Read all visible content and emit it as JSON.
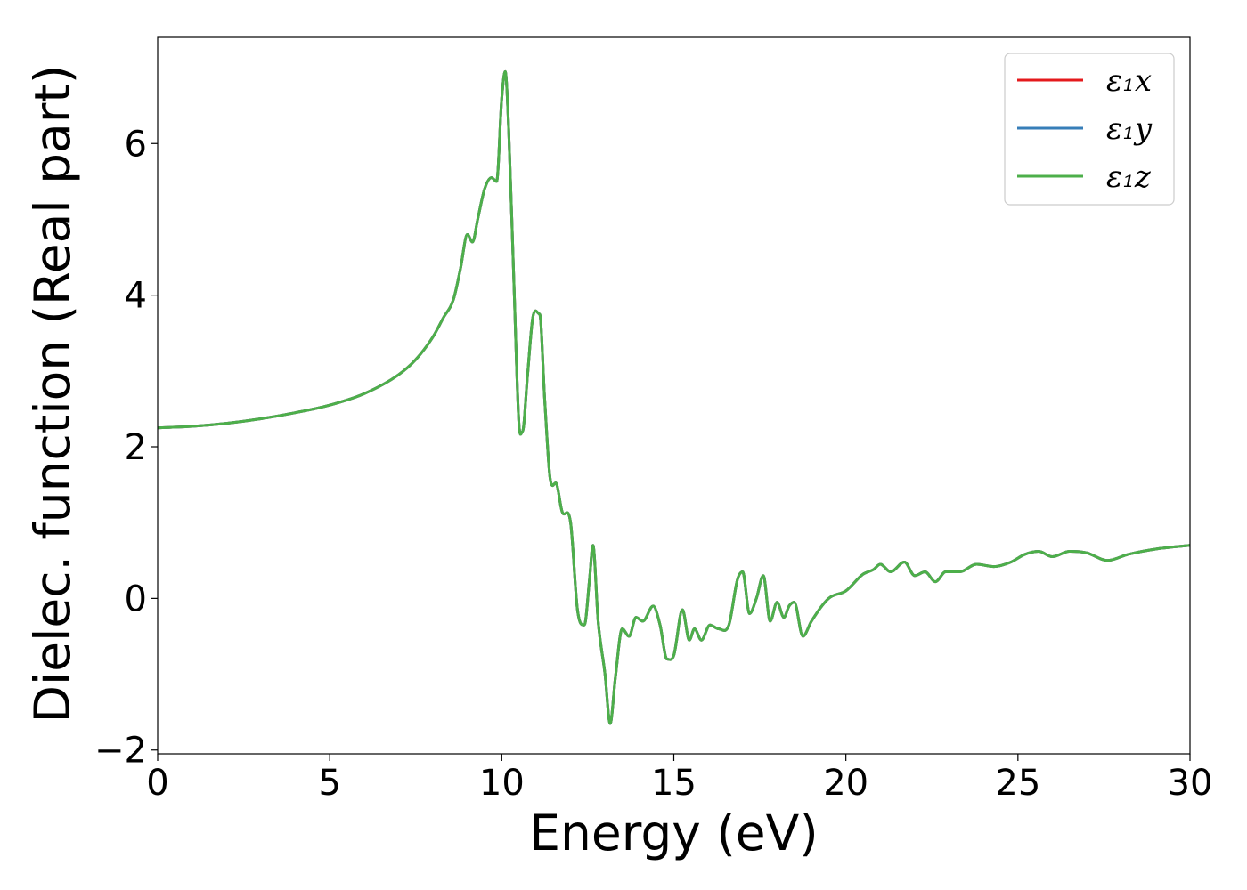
{
  "chart_data": {
    "type": "line",
    "title": "",
    "xlabel": "Energy (eV)",
    "ylabel": "Dielec. function (Real part)",
    "xlim": [
      0,
      30
    ],
    "ylim": [
      -2.05,
      7.4
    ],
    "xticks": [
      0,
      5,
      10,
      15,
      20,
      25,
      30
    ],
    "xtick_labels": [
      "0",
      "5",
      "10",
      "15",
      "20",
      "25",
      "30"
    ],
    "yticks": [
      -2,
      0,
      2,
      4,
      6
    ],
    "ytick_labels": [
      "−2",
      "0",
      "2",
      "4",
      "6"
    ],
    "grid": false,
    "legend_position": "top-right",
    "x": [
      0,
      1,
      2,
      3,
      4,
      5,
      6,
      7,
      7.5,
      8,
      8.3,
      8.6,
      8.8,
      9.0,
      9.15,
      9.3,
      9.5,
      9.7,
      9.85,
      10.0,
      10.1,
      10.2,
      10.35,
      10.5,
      10.6,
      10.75,
      10.9,
      11.1,
      11.25,
      11.4,
      11.6,
      11.75,
      12.0,
      12.2,
      12.4,
      12.55,
      12.65,
      12.8,
      13.0,
      13.15,
      13.3,
      13.5,
      13.7,
      13.9,
      14.1,
      14.4,
      14.6,
      14.8,
      15.0,
      15.25,
      15.45,
      15.6,
      15.8,
      16.05,
      16.3,
      16.6,
      16.85,
      17.0,
      17.2,
      17.4,
      17.6,
      17.8,
      18.0,
      18.2,
      18.35,
      18.5,
      18.75,
      19.0,
      19.5,
      20.0,
      20.5,
      20.8,
      21.0,
      21.3,
      21.7,
      22.0,
      22.3,
      22.6,
      22.9,
      23.3,
      23.8,
      24.3,
      24.8,
      25.2,
      25.6,
      26.0,
      26.5,
      27.0,
      27.6,
      28.2,
      29.0,
      30.0
    ],
    "series": [
      {
        "name": "ε₁x",
        "color": "#e41a1c",
        "values": [
          2.25,
          2.27,
          2.31,
          2.37,
          2.45,
          2.55,
          2.7,
          2.95,
          3.15,
          3.45,
          3.7,
          3.95,
          4.35,
          4.8,
          4.7,
          5.0,
          5.4,
          5.55,
          5.5,
          6.6,
          6.95,
          6.2,
          4.2,
          2.3,
          2.2,
          2.95,
          3.7,
          3.75,
          2.6,
          1.6,
          1.5,
          1.15,
          1.0,
          -0.15,
          -0.35,
          0.25,
          0.7,
          -0.3,
          -1.0,
          -1.65,
          -1.05,
          -0.4,
          -0.5,
          -0.25,
          -0.3,
          -0.1,
          -0.35,
          -0.8,
          -0.75,
          -0.15,
          -0.55,
          -0.4,
          -0.55,
          -0.35,
          -0.4,
          -0.35,
          0.25,
          0.35,
          -0.2,
          0.0,
          0.3,
          -0.3,
          -0.05,
          -0.25,
          -0.1,
          -0.05,
          -0.5,
          -0.3,
          0.0,
          0.1,
          0.32,
          0.38,
          0.45,
          0.35,
          0.48,
          0.3,
          0.35,
          0.22,
          0.35,
          0.35,
          0.45,
          0.42,
          0.48,
          0.58,
          0.62,
          0.55,
          0.62,
          0.6,
          0.5,
          0.58,
          0.65,
          0.7
        ]
      },
      {
        "name": "ε₁y",
        "color": "#377eb8",
        "values": [
          2.25,
          2.27,
          2.31,
          2.37,
          2.45,
          2.55,
          2.7,
          2.95,
          3.15,
          3.45,
          3.7,
          3.95,
          4.35,
          4.8,
          4.7,
          5.0,
          5.4,
          5.55,
          5.5,
          6.6,
          6.95,
          6.2,
          4.2,
          2.3,
          2.2,
          2.95,
          3.7,
          3.75,
          2.6,
          1.6,
          1.5,
          1.15,
          1.0,
          -0.15,
          -0.35,
          0.25,
          0.7,
          -0.3,
          -1.0,
          -1.65,
          -1.05,
          -0.4,
          -0.5,
          -0.25,
          -0.3,
          -0.1,
          -0.35,
          -0.8,
          -0.75,
          -0.15,
          -0.55,
          -0.4,
          -0.55,
          -0.35,
          -0.4,
          -0.35,
          0.25,
          0.35,
          -0.2,
          0.0,
          0.3,
          -0.3,
          -0.05,
          -0.25,
          -0.1,
          -0.05,
          -0.5,
          -0.3,
          0.0,
          0.1,
          0.32,
          0.38,
          0.45,
          0.35,
          0.48,
          0.3,
          0.35,
          0.22,
          0.35,
          0.35,
          0.45,
          0.42,
          0.48,
          0.58,
          0.62,
          0.55,
          0.62,
          0.6,
          0.5,
          0.58,
          0.65,
          0.7
        ]
      },
      {
        "name": "ε₁z",
        "color": "#4daf4a",
        "values": [
          2.25,
          2.27,
          2.31,
          2.37,
          2.45,
          2.55,
          2.7,
          2.95,
          3.15,
          3.45,
          3.7,
          3.95,
          4.35,
          4.8,
          4.7,
          5.0,
          5.4,
          5.55,
          5.5,
          6.6,
          6.95,
          6.2,
          4.2,
          2.3,
          2.2,
          2.95,
          3.7,
          3.75,
          2.6,
          1.6,
          1.5,
          1.15,
          1.0,
          -0.15,
          -0.35,
          0.25,
          0.7,
          -0.3,
          -1.0,
          -1.65,
          -1.05,
          -0.4,
          -0.5,
          -0.25,
          -0.3,
          -0.1,
          -0.35,
          -0.8,
          -0.75,
          -0.15,
          -0.55,
          -0.4,
          -0.55,
          -0.35,
          -0.4,
          -0.35,
          0.25,
          0.35,
          -0.2,
          0.0,
          0.3,
          -0.3,
          -0.05,
          -0.25,
          -0.1,
          -0.05,
          -0.5,
          -0.3,
          0.0,
          0.1,
          0.32,
          0.38,
          0.45,
          0.35,
          0.48,
          0.3,
          0.35,
          0.22,
          0.35,
          0.35,
          0.45,
          0.42,
          0.48,
          0.58,
          0.62,
          0.55,
          0.62,
          0.6,
          0.5,
          0.58,
          0.65,
          0.7
        ]
      }
    ]
  }
}
